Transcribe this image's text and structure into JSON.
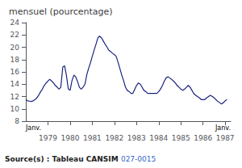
{
  "chart_data": {
    "type": "line",
    "title": "mensuel (pourcentage)",
    "color": "#1a237e",
    "xlim": [
      1978.0,
      1987.25
    ],
    "xticks": [
      1979,
      1980,
      1981,
      1982,
      1983,
      1984,
      1985,
      1986,
      1987
    ],
    "ylim": [
      8,
      24
    ],
    "yticks": [
      8,
      10,
      12,
      14,
      16,
      18,
      20,
      22,
      24
    ],
    "grid": false,
    "annotations": [
      {
        "text": "Janv.",
        "x": 1978.0
      },
      {
        "text": "Janv.",
        "x": 1987.25
      }
    ],
    "source": "Source(s) : Tableau CANSIM",
    "source_link": "027-0015",
    "x": [
      1978.0,
      1978.08,
      1978.17,
      1978.25,
      1978.33,
      1978.42,
      1978.5,
      1978.58,
      1978.67,
      1978.75,
      1978.83,
      1978.92,
      1979.0,
      1979.08,
      1979.17,
      1979.25,
      1979.33,
      1979.42,
      1979.5,
      1979.58,
      1979.67,
      1979.75,
      1979.83,
      1979.92,
      1980.0,
      1980.08,
      1980.17,
      1980.25,
      1980.33,
      1980.42,
      1980.5,
      1980.58,
      1980.67,
      1980.75,
      1980.83,
      1980.92,
      1981.0,
      1981.08,
      1981.17,
      1981.25,
      1981.33,
      1981.42,
      1981.5,
      1981.58,
      1981.67,
      1981.75,
      1981.83,
      1981.92,
      1982.0,
      1982.08,
      1982.17,
      1982.25,
      1982.33,
      1982.42,
      1982.5,
      1982.58,
      1982.67,
      1982.75,
      1982.83,
      1982.92,
      1983.0,
      1983.08,
      1983.17,
      1983.25,
      1983.33,
      1983.42,
      1983.5,
      1983.58,
      1983.67,
      1983.75,
      1983.83,
      1983.92,
      1984.0,
      1984.08,
      1984.17,
      1984.25,
      1984.33,
      1984.42,
      1984.5,
      1984.58,
      1984.67,
      1984.75,
      1984.83,
      1984.92,
      1985.0,
      1985.08,
      1985.17,
      1985.25,
      1985.33,
      1985.42,
      1985.5,
      1985.58,
      1985.67,
      1985.75,
      1985.83,
      1985.92,
      1986.0,
      1986.08,
      1986.17,
      1986.25,
      1986.33,
      1986.42,
      1986.5,
      1986.58,
      1986.67,
      1986.75,
      1986.83,
      1986.92,
      1987.0,
      1987.08
    ],
    "values": [
      11.5,
      11.3,
      11.25,
      11.2,
      11.3,
      11.5,
      11.8,
      12.2,
      12.8,
      13.2,
      13.8,
      14.2,
      14.5,
      14.8,
      14.5,
      14.2,
      13.8,
      13.5,
      13.2,
      13.5,
      16.8,
      17.0,
      15.5,
      13.2,
      13.0,
      14.5,
      15.5,
      15.2,
      14.5,
      13.5,
      13.2,
      13.5,
      14.0,
      15.5,
      16.5,
      17.5,
      18.5,
      19.5,
      20.5,
      21.5,
      21.8,
      21.5,
      21.0,
      20.5,
      20.0,
      19.5,
      19.3,
      19.0,
      18.8,
      18.5,
      17.5,
      16.5,
      15.5,
      14.5,
      13.5,
      13.0,
      12.8,
      12.5,
      12.5,
      13.2,
      13.8,
      14.2,
      14.0,
      13.5,
      13.0,
      12.8,
      12.5,
      12.5,
      12.5,
      12.5,
      12.5,
      12.5,
      12.8,
      13.2,
      13.8,
      14.5,
      15.0,
      15.2,
      15.0,
      14.8,
      14.5,
      14.2,
      13.8,
      13.5,
      13.2,
      13.0,
      13.2,
      13.5,
      13.8,
      13.5,
      13.0,
      12.5,
      12.2,
      12.0,
      11.8,
      11.5,
      11.5,
      11.5,
      11.8,
      12.0,
      12.2,
      12.0,
      11.8,
      11.5,
      11.2,
      11.0,
      10.8,
      11.0,
      11.3,
      11.5
    ]
  }
}
